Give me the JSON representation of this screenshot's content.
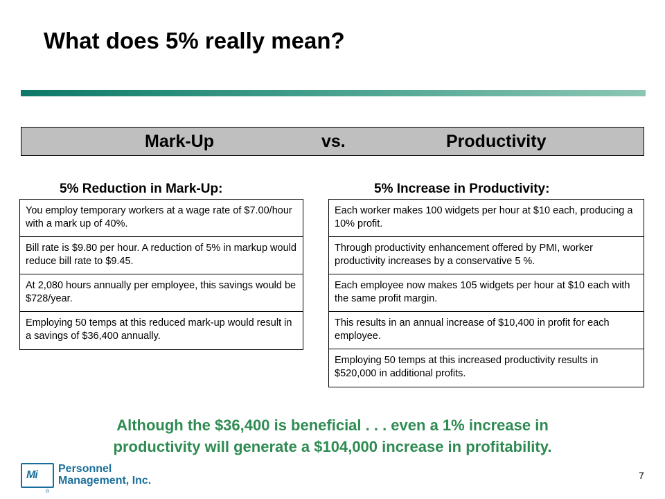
{
  "title": "What does 5% really mean?",
  "header_bar": {
    "left": "Mark-Up",
    "middle": "vs.",
    "right": "Productivity"
  },
  "left": {
    "heading": "5% Reduction in Mark-Up:",
    "items": [
      "You employ temporary workers at a wage rate of $7.00/hour with a mark up of 40%.",
      "Bill rate is $9.80 per hour. A reduction of 5% in markup would reduce bill rate to $9.45.",
      "At 2,080 hours annually per employee, this savings would be $728/year.",
      "Employing 50 temps at this reduced mark-up would result in a savings of $36,400 annually."
    ]
  },
  "right": {
    "heading": "5% Increase in Productivity:",
    "items": [
      "Each worker makes 100 widgets per hour at $10 each, producing a 10% profit.",
      "Through productivity enhancement offered by PMI, worker productivity increases by a conservative 5 %.",
      "Each employee now makes 105 widgets per hour at $10 each with the same profit margin.",
      "This results in an annual increase of $10,400 in profit for each employee.",
      "Employing 50 temps at this increased productivity results in $520,000 in additional profits."
    ]
  },
  "conclusion": {
    "line1": "Although the $36,400 is beneficial . . . even a 1% increase in",
    "line2": "productivity will generate a $104,000 increase in profitability."
  },
  "logo": {
    "mark": "Mi",
    "line1": "Personnel",
    "line2": "Management, Inc.",
    "reg": "®"
  },
  "page_number": "7",
  "colors": {
    "accent_green": "#2e8b52",
    "rule_teal": "#0e7868",
    "logo_blue": "#1a6f9a",
    "bar_gray": "#bfbfbf"
  }
}
